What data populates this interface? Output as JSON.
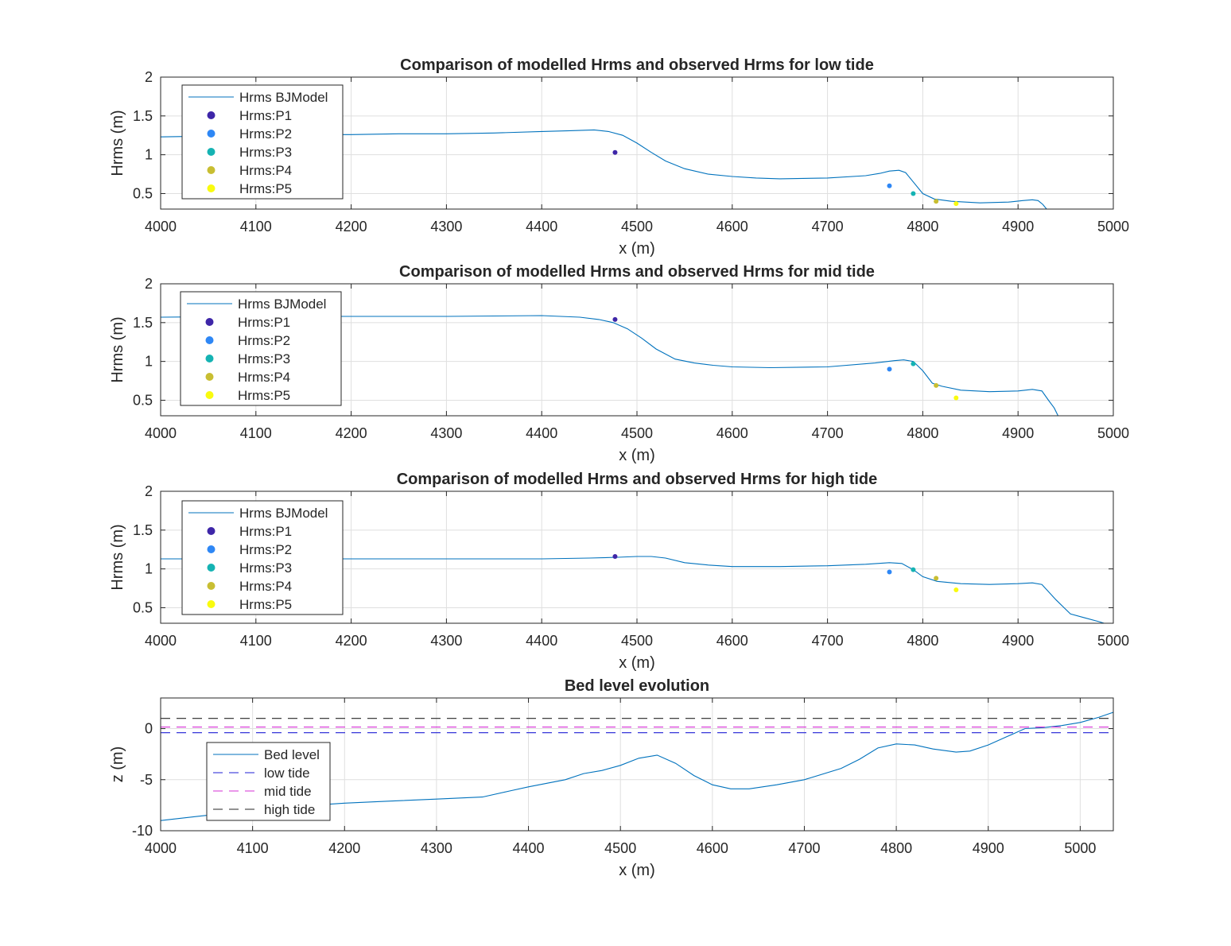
{
  "chart_data": [
    {
      "type": "line",
      "title": "Comparison of modelled Hrms and observed Hrms for low tide",
      "xlabel": "x (m)",
      "ylabel": "Hrms (m)",
      "xlim": [
        4000,
        5000
      ],
      "ylim": [
        0.3,
        2
      ],
      "xticks": [
        "4000",
        "4100",
        "4200",
        "4300",
        "4400",
        "4500",
        "4600",
        "4700",
        "4800",
        "4900",
        "5000"
      ],
      "yticks": [
        "0.5",
        "1",
        "1.5",
        "2"
      ],
      "grid": true,
      "legend_position": "top-left",
      "series": [
        {
          "name": "Hrms BJModel",
          "style": "line",
          "color": "#0072BD",
          "x": [
            4000,
            4050,
            4100,
            4150,
            4200,
            4250,
            4300,
            4350,
            4400,
            4430,
            4455,
            4470,
            4485,
            4500,
            4515,
            4530,
            4550,
            4575,
            4600,
            4625,
            4650,
            4700,
            4740,
            4755,
            4765,
            4775,
            4782,
            4790,
            4800,
            4812,
            4830,
            4860,
            4890,
            4905,
            4915,
            4921,
            4926,
            4930
          ],
          "y": [
            1.23,
            1.24,
            1.25,
            1.26,
            1.26,
            1.27,
            1.27,
            1.28,
            1.3,
            1.31,
            1.32,
            1.3,
            1.25,
            1.15,
            1.03,
            0.92,
            0.82,
            0.75,
            0.72,
            0.7,
            0.69,
            0.7,
            0.73,
            0.76,
            0.79,
            0.8,
            0.77,
            0.65,
            0.5,
            0.43,
            0.4,
            0.38,
            0.39,
            0.41,
            0.42,
            0.41,
            0.36,
            0.3
          ]
        },
        {
          "name": "Hrms:P1",
          "style": "point",
          "color": "#3E26A8",
          "x": [
            4477
          ],
          "y": [
            1.03
          ]
        },
        {
          "name": "Hrms:P2",
          "style": "point",
          "color": "#2E87F5",
          "x": [
            4765
          ],
          "y": [
            0.6
          ]
        },
        {
          "name": "Hrms:P3",
          "style": "point",
          "color": "#15B3B3",
          "x": [
            4790
          ],
          "y": [
            0.5
          ]
        },
        {
          "name": "Hrms:P4",
          "style": "point",
          "color": "#C8BE32",
          "x": [
            4814
          ],
          "y": [
            0.4
          ]
        },
        {
          "name": "Hrms:P5",
          "style": "point",
          "color": "#F9FB0E",
          "x": [
            4835
          ],
          "y": [
            0.37
          ]
        }
      ]
    },
    {
      "type": "line",
      "title": "Comparison of modelled Hrms and observed Hrms for mid tide",
      "xlabel": "x (m)",
      "ylabel": "Hrms (m)",
      "xlim": [
        4000,
        5000
      ],
      "ylim": [
        0.3,
        2
      ],
      "xticks": [
        "4000",
        "4100",
        "4200",
        "4300",
        "4400",
        "4500",
        "4600",
        "4700",
        "4800",
        "4900",
        "5000"
      ],
      "yticks": [
        "0.5",
        "1",
        "1.5",
        "2"
      ],
      "grid": true,
      "legend_position": "top-left",
      "series": [
        {
          "name": "Hrms BJModel",
          "style": "line",
          "color": "#0072BD",
          "x": [
            4000,
            4100,
            4200,
            4300,
            4400,
            4440,
            4460,
            4475,
            4490,
            4505,
            4520,
            4540,
            4560,
            4580,
            4600,
            4640,
            4700,
            4750,
            4770,
            4780,
            4790,
            4800,
            4810,
            4820,
            4840,
            4870,
            4900,
            4915,
            4925,
            4932,
            4938,
            4942
          ],
          "y": [
            1.57,
            1.58,
            1.58,
            1.58,
            1.59,
            1.57,
            1.54,
            1.5,
            1.42,
            1.3,
            1.16,
            1.03,
            0.98,
            0.95,
            0.93,
            0.92,
            0.93,
            0.98,
            1.01,
            1.02,
            1.0,
            0.88,
            0.72,
            0.68,
            0.63,
            0.61,
            0.62,
            0.64,
            0.62,
            0.5,
            0.4,
            0.3
          ]
        },
        {
          "name": "Hrms:P1",
          "style": "point",
          "color": "#3E26A8",
          "x": [
            4477
          ],
          "y": [
            1.54
          ]
        },
        {
          "name": "Hrms:P2",
          "style": "point",
          "color": "#2E87F5",
          "x": [
            4765
          ],
          "y": [
            0.9
          ]
        },
        {
          "name": "Hrms:P3",
          "style": "point",
          "color": "#15B3B3",
          "x": [
            4790
          ],
          "y": [
            0.97
          ]
        },
        {
          "name": "Hrms:P4",
          "style": "point",
          "color": "#C8BE32",
          "x": [
            4814
          ],
          "y": [
            0.69
          ]
        },
        {
          "name": "Hrms:P5",
          "style": "point",
          "color": "#F9FB0E",
          "x": [
            4835
          ],
          "y": [
            0.53
          ]
        }
      ]
    },
    {
      "type": "line",
      "title": "Comparison of modelled Hrms and observed Hrms for high tide",
      "xlabel": "x (m)",
      "ylabel": "Hrms (m)",
      "xlim": [
        4000,
        5000
      ],
      "ylim": [
        0.3,
        2
      ],
      "xticks": [
        "4000",
        "4100",
        "4200",
        "4300",
        "4400",
        "4500",
        "4600",
        "4700",
        "4800",
        "4900",
        "5000"
      ],
      "yticks": [
        "0.5",
        "1",
        "1.5",
        "2"
      ],
      "grid": true,
      "legend_position": "top-left",
      "series": [
        {
          "name": "Hrms BJModel",
          "style": "line",
          "color": "#0072BD",
          "x": [
            4000,
            4100,
            4200,
            4300,
            4400,
            4450,
            4480,
            4500,
            4515,
            4530,
            4550,
            4575,
            4600,
            4650,
            4700,
            4740,
            4765,
            4778,
            4790,
            4800,
            4815,
            4840,
            4870,
            4900,
            4915,
            4925,
            4940,
            4955,
            4970,
            4985,
            4993
          ],
          "y": [
            1.13,
            1.13,
            1.13,
            1.13,
            1.13,
            1.14,
            1.15,
            1.16,
            1.16,
            1.14,
            1.08,
            1.05,
            1.03,
            1.03,
            1.04,
            1.06,
            1.08,
            1.07,
            0.99,
            0.9,
            0.84,
            0.81,
            0.8,
            0.81,
            0.82,
            0.8,
            0.6,
            0.42,
            0.37,
            0.32,
            0.29
          ]
        },
        {
          "name": "Hrms:P1",
          "style": "point",
          "color": "#3E26A8",
          "x": [
            4477
          ],
          "y": [
            1.16
          ]
        },
        {
          "name": "Hrms:P2",
          "style": "point",
          "color": "#2E87F5",
          "x": [
            4765
          ],
          "y": [
            0.96
          ]
        },
        {
          "name": "Hrms:P3",
          "style": "point",
          "color": "#15B3B3",
          "x": [
            4790
          ],
          "y": [
            0.99
          ]
        },
        {
          "name": "Hrms:P4",
          "style": "point",
          "color": "#C8BE32",
          "x": [
            4814
          ],
          "y": [
            0.88
          ]
        },
        {
          "name": "Hrms:P5",
          "style": "point",
          "color": "#F9FB0E",
          "x": [
            4835
          ],
          "y": [
            0.73
          ]
        }
      ]
    },
    {
      "type": "line",
      "title": "Bed level evolution",
      "xlabel": "x (m)",
      "ylabel": "z (m)",
      "xlim": [
        4000,
        5036
      ],
      "ylim": [
        -10,
        3
      ],
      "xticks": [
        "4000",
        "4100",
        "4200",
        "4300",
        "4400",
        "4500",
        "4600",
        "4700",
        "4800",
        "4900",
        "5000"
      ],
      "yticks": [
        "-10",
        "-5",
        "0"
      ],
      "grid": true,
      "legend_position": "bottom-left",
      "series": [
        {
          "name": "Bed level",
          "style": "line",
          "color": "#0072BD",
          "x": [
            4000,
            4050,
            4100,
            4150,
            4200,
            4250,
            4300,
            4350,
            4380,
            4400,
            4440,
            4460,
            4480,
            4500,
            4520,
            4540,
            4560,
            4580,
            4600,
            4620,
            4640,
            4670,
            4700,
            4740,
            4760,
            4780,
            4800,
            4820,
            4840,
            4865,
            4880,
            4900,
            4920,
            4940,
            4960,
            4980,
            5000,
            5020,
            5036
          ],
          "y": [
            -9,
            -8.5,
            -8,
            -7.6,
            -7.3,
            -7.1,
            -6.9,
            -6.7,
            -6.1,
            -5.7,
            -5,
            -4.4,
            -4.1,
            -3.6,
            -2.9,
            -2.6,
            -3.4,
            -4.6,
            -5.5,
            -5.9,
            -5.9,
            -5.5,
            -5.0,
            -3.9,
            -3,
            -1.9,
            -1.5,
            -1.6,
            -2,
            -2.3,
            -2.2,
            -1.6,
            -0.8,
            0,
            0.1,
            0.3,
            0.6,
            1.1,
            1.6
          ]
        },
        {
          "name": "low tide",
          "style": "dashed",
          "color": "#1F1FD6",
          "x": [
            4000,
            5036
          ],
          "y": [
            -0.4,
            -0.4
          ]
        },
        {
          "name": "mid tide",
          "style": "dashed",
          "color": "#D62FD6",
          "x": [
            4000,
            5036
          ],
          "y": [
            0.15,
            0.15
          ]
        },
        {
          "name": "high tide",
          "style": "dashed",
          "color": "#262626",
          "x": [
            4000,
            5036
          ],
          "y": [
            1.0,
            1.0
          ]
        }
      ]
    }
  ]
}
